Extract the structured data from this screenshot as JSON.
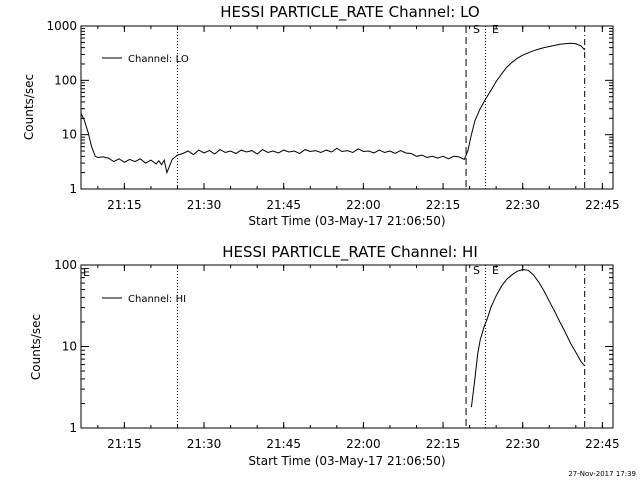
{
  "footer": {
    "generated": "27-Nov-2017 17:39"
  },
  "chart_data": [
    {
      "type": "line",
      "title": "HESSI PARTICLE_RATE Channel: LO",
      "xlabel": "Start Time (03-May-17 21:06:50)",
      "ylabel": "Counts/sec",
      "legend": {
        "entry": "Channel: LO",
        "placement": "top-left"
      },
      "y_scale": "log",
      "xlim": [
        "21:06:50",
        "22:47:00"
      ],
      "ylim": [
        1,
        1000
      ],
      "x_ticks": [
        "21:15",
        "21:30",
        "21:45",
        "22:00",
        "22:15",
        "22:30",
        "22:45"
      ],
      "y_ticks": [
        "1",
        "10",
        "100",
        "1000"
      ],
      "markers": [
        {
          "label": "S",
          "time": "22:19:20",
          "style": "dashed"
        },
        {
          "label": "E",
          "time": "22:23:00",
          "style": "dotted"
        }
      ],
      "vlines": [
        {
          "time": "21:25:00",
          "style": "dotted"
        },
        {
          "time": "22:41:40",
          "style": "dash-dot"
        }
      ],
      "series": [
        {
          "name": "Channel: LO",
          "x": [
            "21:06:50",
            "21:07:30",
            "21:08:10",
            "21:08:50",
            "21:09:30",
            "21:10:00",
            "21:11:00",
            "21:12:00",
            "21:13:00",
            "21:14:00",
            "21:15:00",
            "21:16:00",
            "21:17:00",
            "21:18:00",
            "21:19:00",
            "21:20:00",
            "21:21:00",
            "21:21:30",
            "21:22:00",
            "21:22:30",
            "21:23:00",
            "21:24:00",
            "21:25:00",
            "21:26:00",
            "21:27:00",
            "21:28:00",
            "21:29:00",
            "21:30:00",
            "21:31:00",
            "21:32:00",
            "21:33:00",
            "21:34:00",
            "21:35:00",
            "21:36:00",
            "21:37:00",
            "21:38:00",
            "21:39:00",
            "21:40:00",
            "21:41:00",
            "21:42:00",
            "21:43:00",
            "21:44:00",
            "21:45:00",
            "21:46:00",
            "21:47:00",
            "21:48:00",
            "21:49:00",
            "21:50:00",
            "21:51:00",
            "21:52:00",
            "21:53:00",
            "21:54:00",
            "21:55:00",
            "21:56:00",
            "21:57:00",
            "21:58:00",
            "21:59:00",
            "22:00:00",
            "22:01:00",
            "22:02:00",
            "22:03:00",
            "22:04:00",
            "22:05:00",
            "22:06:00",
            "22:07:00",
            "22:08:00",
            "22:09:00",
            "22:10:00",
            "22:11:00",
            "22:12:00",
            "22:13:00",
            "22:14:00",
            "22:15:00",
            "22:16:00",
            "22:17:00",
            "22:18:00",
            "22:19:00",
            "22:19:40",
            "22:20:20",
            "22:21:00",
            "22:22:00",
            "22:23:00",
            "22:24:00",
            "22:25:00",
            "22:26:00",
            "22:27:00",
            "22:28:00",
            "22:29:00",
            "22:30:00",
            "22:31:00",
            "22:32:00",
            "22:33:00",
            "22:34:00",
            "22:35:00",
            "22:36:00",
            "22:37:00",
            "22:38:00",
            "22:39:00",
            "22:40:00",
            "22:41:00",
            "22:41:40"
          ],
          "values": [
            25,
            18,
            11,
            6,
            4,
            3.8,
            3.9,
            3.7,
            3.2,
            3.6,
            3.1,
            3.5,
            3.2,
            3.6,
            3.0,
            3.4,
            2.9,
            3.3,
            2.8,
            3.4,
            2.0,
            3.5,
            4.2,
            4.5,
            5.0,
            4.3,
            5.2,
            4.6,
            5.1,
            4.4,
            5.3,
            4.7,
            5.0,
            4.5,
            5.2,
            4.8,
            5.1,
            4.4,
            5.3,
            4.7,
            5.0,
            4.6,
            5.2,
            4.8,
            5.0,
            4.5,
            5.3,
            4.9,
            5.1,
            4.7,
            5.2,
            4.8,
            5.6,
            4.9,
            5.1,
            4.7,
            5.5,
            4.9,
            5.0,
            4.6,
            5.2,
            4.7,
            5.0,
            4.5,
            5.1,
            4.6,
            4.5,
            4.0,
            4.2,
            3.8,
            4.0,
            3.7,
            4.0,
            3.6,
            4.0,
            3.9,
            3.5,
            5.0,
            10,
            18,
            30,
            45,
            65,
            95,
            130,
            175,
            215,
            255,
            290,
            320,
            350,
            375,
            400,
            420,
            440,
            460,
            470,
            480,
            470,
            430,
            360
          ]
        }
      ]
    },
    {
      "type": "line",
      "title": "HESSI PARTICLE_RATE Channel: HI",
      "xlabel": "Start Time (03-May-17 21:06:50)",
      "ylabel": "Counts/sec",
      "legend": {
        "entry": "Channel: HI",
        "placement": "top-left"
      },
      "y_scale": "log",
      "xlim": [
        "21:06:50",
        "22:47:00"
      ],
      "ylim": [
        1,
        100
      ],
      "x_ticks": [
        "21:15",
        "21:30",
        "21:45",
        "22:00",
        "22:15",
        "22:30",
        "22:45"
      ],
      "y_ticks": [
        "1",
        "10",
        "100"
      ],
      "corner_label": "E",
      "markers": [
        {
          "label": "S",
          "time": "22:19:20",
          "style": "dashed"
        },
        {
          "label": "E",
          "time": "22:23:00",
          "style": "dotted"
        }
      ],
      "vlines": [
        {
          "time": "21:25:00",
          "style": "dotted"
        },
        {
          "time": "22:41:40",
          "style": "dash-dot"
        }
      ],
      "series": [
        {
          "name": "Channel: HI",
          "x": [
            "22:20:20",
            "22:21:00",
            "22:21:30",
            "22:22:00",
            "22:22:40",
            "22:23:20",
            "22:24:00",
            "22:25:00",
            "22:26:00",
            "22:27:00",
            "22:28:00",
            "22:29:00",
            "22:30:00",
            "22:31:00",
            "22:32:00",
            "22:33:00",
            "22:34:00",
            "22:35:00",
            "22:36:00",
            "22:37:00",
            "22:38:00",
            "22:39:00",
            "22:40:00",
            "22:41:00",
            "22:41:40"
          ],
          "values": [
            1.8,
            4.0,
            8.0,
            12,
            17,
            22,
            30,
            42,
            55,
            67,
            76,
            84,
            88,
            86,
            76,
            62,
            48,
            36,
            27,
            20,
            15,
            11,
            8.5,
            6.5,
            5.8
          ]
        }
      ]
    }
  ]
}
